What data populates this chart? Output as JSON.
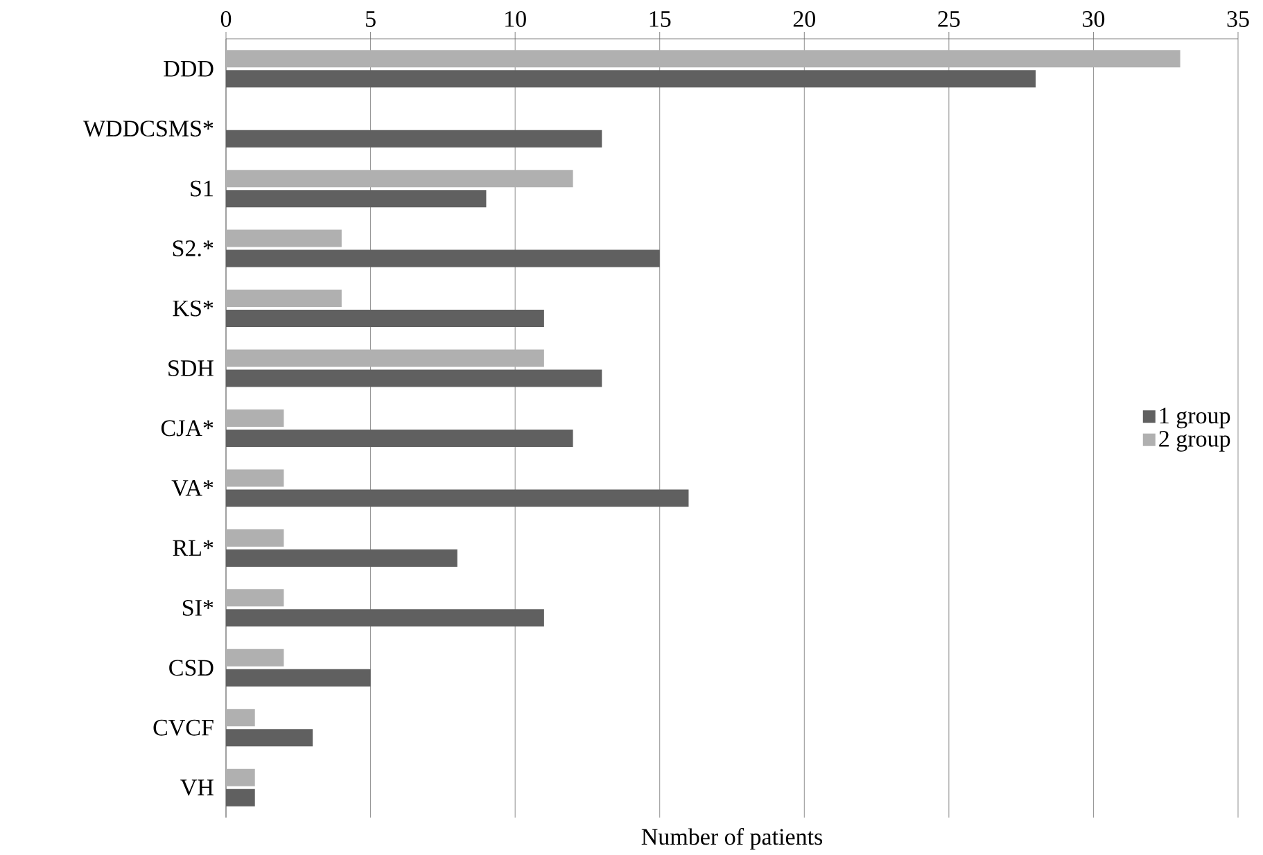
{
  "chart_data": {
    "type": "bar",
    "orientation": "horizontal",
    "xlabel": "Number of patients",
    "categories": [
      "DDD",
      "WDDCSMS*",
      "S1",
      "S2.*",
      "KS*",
      "SDH",
      "CJA*",
      "VA*",
      "RL*",
      "SI*",
      "CSD",
      "CVCF",
      "VH"
    ],
    "series": [
      {
        "name": "1 group",
        "color": "#606060",
        "values": [
          28,
          13,
          9,
          15,
          11,
          13,
          12,
          16,
          8,
          11,
          5,
          3,
          1
        ]
      },
      {
        "name": "2 group",
        "color": "#b0b0b0",
        "values": [
          33,
          null,
          12,
          4,
          4,
          11,
          2,
          2,
          2,
          2,
          2,
          1,
          1
        ]
      }
    ],
    "xlim": [
      0,
      35
    ],
    "xticks": [
      0,
      5,
      10,
      15,
      20,
      25,
      30,
      35
    ],
    "grid": "x",
    "legend": "right"
  }
}
